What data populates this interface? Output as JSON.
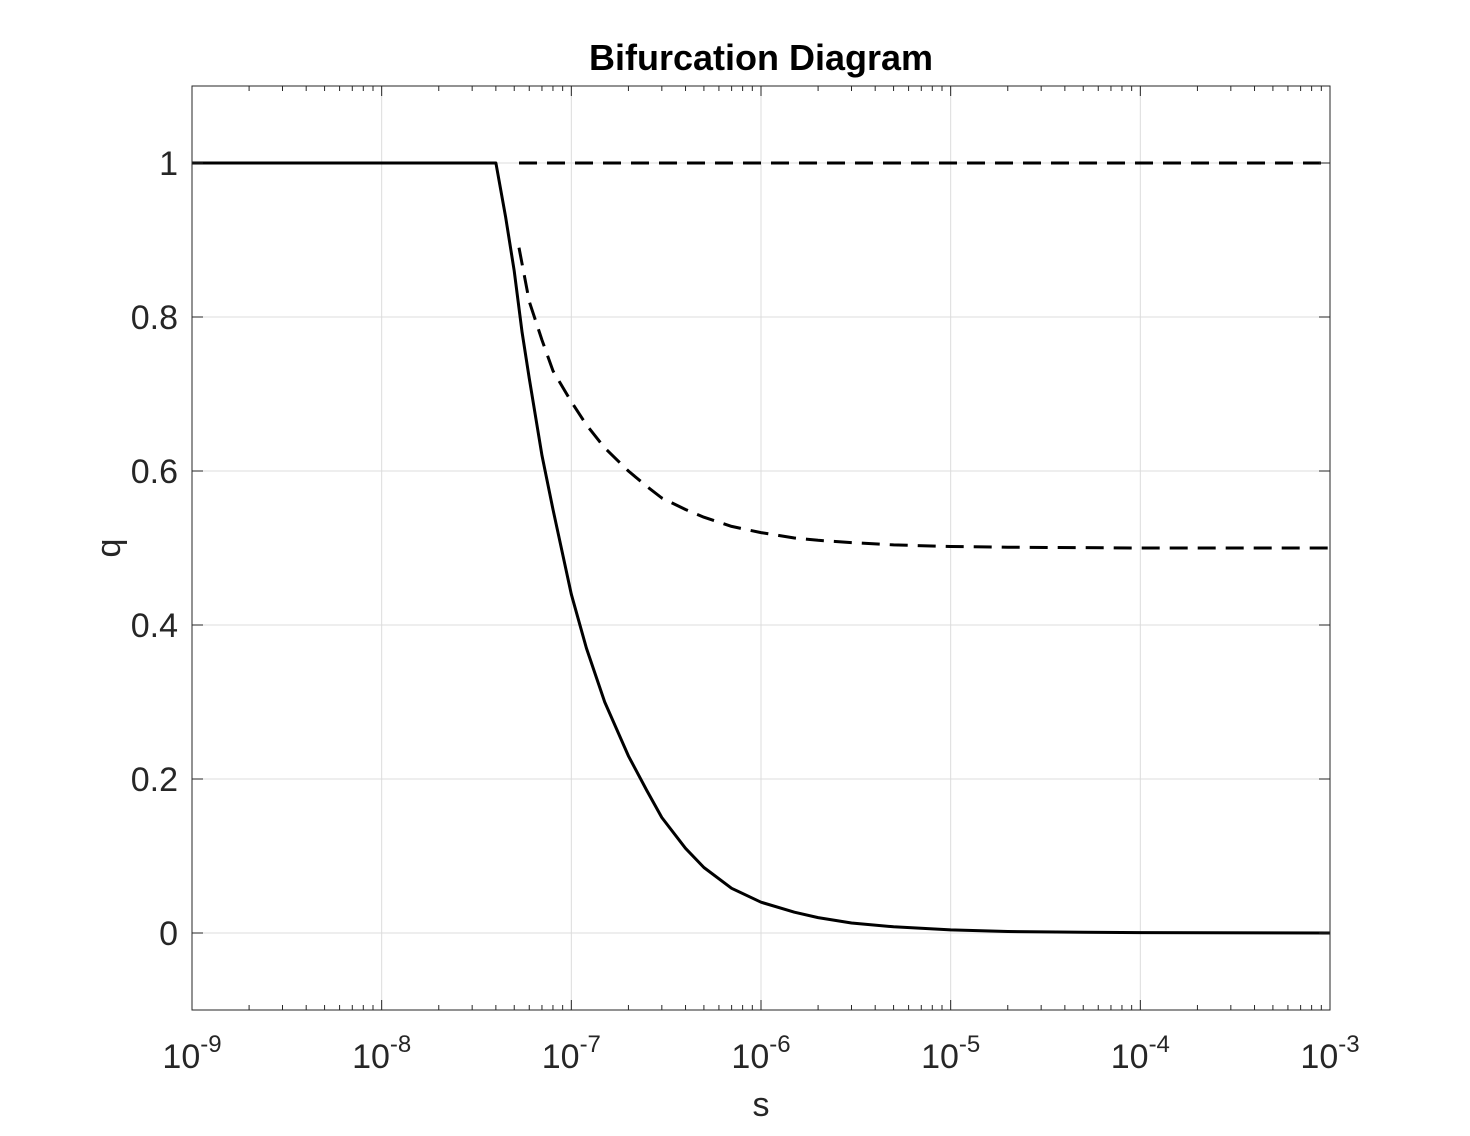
{
  "chart_data": {
    "type": "line",
    "title": "Bifurcation Diagram",
    "xlabel": "s",
    "ylabel": "q",
    "xscale": "log",
    "xlim": [
      1e-09,
      0.001
    ],
    "ylim": [
      -0.1,
      1.1
    ],
    "grid": true,
    "x_ticks": [
      {
        "value": 1e-09,
        "base": "10",
        "exp": "-9"
      },
      {
        "value": 1e-08,
        "base": "10",
        "exp": "-8"
      },
      {
        "value": 1e-07,
        "base": "10",
        "exp": "-7"
      },
      {
        "value": 1e-06,
        "base": "10",
        "exp": "-6"
      },
      {
        "value": 1e-05,
        "base": "10",
        "exp": "-5"
      },
      {
        "value": 0.0001,
        "base": "10",
        "exp": "-4"
      },
      {
        "value": 0.001,
        "base": "10",
        "exp": "-3"
      }
    ],
    "y_ticks": [
      {
        "value": 0,
        "label": "0"
      },
      {
        "value": 0.2,
        "label": "0.2"
      },
      {
        "value": 0.4,
        "label": "0.4"
      },
      {
        "value": 0.6,
        "label": "0.6"
      },
      {
        "value": 0.8,
        "label": "0.8"
      },
      {
        "value": 1,
        "label": "1"
      }
    ],
    "series": [
      {
        "style": "solid",
        "color": "#000000",
        "points": [
          [
            1e-09,
            1
          ],
          [
            4e-08,
            1
          ],
          [
            4.5e-08,
            0.93
          ],
          [
            5e-08,
            0.86
          ],
          [
            5.5e-08,
            0.78
          ],
          [
            6e-08,
            0.72
          ],
          [
            7e-08,
            0.62
          ],
          [
            8e-08,
            0.55
          ],
          [
            1e-07,
            0.44
          ],
          [
            1.2e-07,
            0.37
          ],
          [
            1.5e-07,
            0.3
          ],
          [
            2e-07,
            0.23
          ],
          [
            2.5e-07,
            0.185
          ],
          [
            3e-07,
            0.15
          ],
          [
            4e-07,
            0.11
          ],
          [
            5e-07,
            0.085
          ],
          [
            7e-07,
            0.058
          ],
          [
            1e-06,
            0.04
          ],
          [
            1.5e-06,
            0.027
          ],
          [
            2e-06,
            0.02
          ],
          [
            3e-06,
            0.013
          ],
          [
            5e-06,
            0.008
          ],
          [
            1e-05,
            0.004
          ],
          [
            2e-05,
            0.002
          ],
          [
            5e-05,
            0.001
          ],
          [
            0.0001,
            0.0005
          ],
          [
            0.001,
            0.0
          ]
        ]
      },
      {
        "style": "dashed",
        "color": "#000000",
        "points": [
          [
            5.3e-08,
            1
          ],
          [
            0.001,
            1
          ]
        ]
      },
      {
        "style": "dashed",
        "color": "#000000",
        "points": [
          [
            5.3e-08,
            0.89
          ],
          [
            6e-08,
            0.82
          ],
          [
            7e-08,
            0.77
          ],
          [
            8e-08,
            0.73
          ],
          [
            1e-07,
            0.69
          ],
          [
            1.2e-07,
            0.66
          ],
          [
            1.5e-07,
            0.63
          ],
          [
            2e-07,
            0.6
          ],
          [
            2.5e-07,
            0.58
          ],
          [
            3e-07,
            0.565
          ],
          [
            4e-07,
            0.55
          ],
          [
            5e-07,
            0.54
          ],
          [
            7e-07,
            0.528
          ],
          [
            1e-06,
            0.52
          ],
          [
            1.5e-06,
            0.513
          ],
          [
            2e-06,
            0.51
          ],
          [
            3e-06,
            0.507
          ],
          [
            5e-06,
            0.504
          ],
          [
            1e-05,
            0.502
          ],
          [
            2e-05,
            0.501
          ],
          [
            0.0001,
            0.5
          ],
          [
            0.001,
            0.5
          ]
        ]
      }
    ]
  }
}
